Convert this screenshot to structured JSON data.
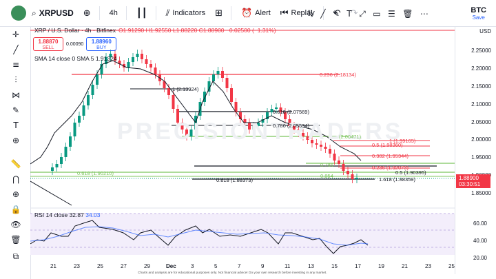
{
  "topbar": {
    "avatar_initial": "",
    "symbol": "XRPUSD",
    "interval": "4h",
    "indicators_label": "Indicators",
    "alert_label": "Alert",
    "replay_label": "Replay",
    "currency": "BTC",
    "save_label": "Save"
  },
  "legend": {
    "title": "XRP / U.S. Dollar · 4h · Bitfinex",
    "ohlc": "O1.91290 H1.92550 L1.88220 C1.88900 −0.02500 (−1.31%)"
  },
  "trade": {
    "sell_price": "1.88870",
    "sell_label": "SELL",
    "spread": "0.00090",
    "buy_price": "1.88960",
    "buy_label": "BUY"
  },
  "sma": {
    "label": "SMA 14 close 0 SMA 5",
    "value": "1.91324"
  },
  "rsi": {
    "label": "RSI 14 close",
    "value1": "32.87",
    "value2": "34.03"
  },
  "price_axis": {
    "currency": "USD",
    "ticks": [
      "2.25000",
      "2.20000",
      "2.15000",
      "2.10000",
      "2.05000",
      "2.00000",
      "1.95000",
      "1.90000",
      "1.85000"
    ],
    "current_price": "1.88900",
    "countdown": "03:30:51"
  },
  "rsi_axis": {
    "ticks": [
      "60.00",
      "40.00",
      "20.00"
    ]
  },
  "time_axis": {
    "ticks": [
      "21",
      "23",
      "25",
      "27",
      "29",
      "Dec",
      "3",
      "5",
      "7",
      "9",
      "11",
      "13",
      "15",
      "17",
      "19",
      "21",
      "23",
      "25"
    ]
  },
  "fib_labels": {
    "l1": "0.236 (2.18134)",
    "l2": "1 (2.13924)",
    "l3": "0.618 (2.07569)",
    "l4": "0.786 (2.05594)",
    "l5": "(2.00471)",
    "l6": "1 (1.99165)",
    "l7": "0.5 (1.98360)",
    "l8": "0.382 (1.95344)",
    "l9": "0.236 (1.92073)",
    "l10": "0.5 (1.90395)",
    "l11": "0.618 (1.90210)",
    "l12": "0.618 (1.88373)",
    "l13": "1.618 (1.88359)",
    "l14": "0.786",
    "l15": "0.854"
  },
  "watermark": "PRECISIONTRADERS",
  "disclaimer": "Charts and analysis are for educational purposes only. Not financial advice! Do your own research before investing in any market.",
  "colors": {
    "up": "#089981",
    "down": "#f23645",
    "fib_red": "#f23645",
    "fib_green": "#7cc55e",
    "rsi_blue": "#2962ff",
    "rsi_bg": "#f3eefb"
  }
}
